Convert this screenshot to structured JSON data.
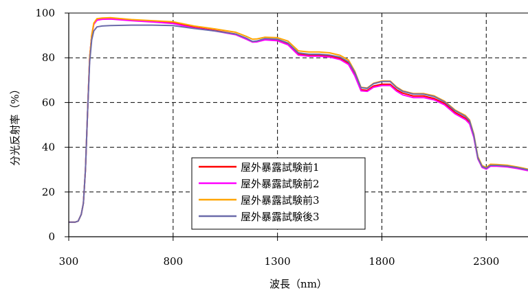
{
  "chart_data": {
    "type": "line",
    "xlabel": "波長（nm）",
    "ylabel": "分光反射率（%）",
    "xlim": [
      300,
      2500
    ],
    "ylim": [
      0,
      100
    ],
    "x_ticks": [
      300,
      800,
      1300,
      1800,
      2300
    ],
    "x_tick_labels": [
      "300",
      "800",
      "1300",
      "1800",
      "2300"
    ],
    "y_ticks": [
      0,
      20,
      40,
      60,
      80,
      100
    ],
    "y_tick_labels": [
      "0",
      "20",
      "40",
      "60",
      "80",
      "100"
    ],
    "grid": "dashed",
    "legend_position": "lower-left-center",
    "series": [
      {
        "name": "屋外暴露試験前1",
        "color": "#ff0000",
        "points": [
          [
            300,
            6.5
          ],
          [
            330,
            6.5
          ],
          [
            345,
            7
          ],
          [
            360,
            10
          ],
          [
            370,
            15
          ],
          [
            380,
            30
          ],
          [
            390,
            55
          ],
          [
            400,
            80
          ],
          [
            410,
            90
          ],
          [
            420,
            95
          ],
          [
            435,
            96.8
          ],
          [
            460,
            97.3
          ],
          [
            500,
            97.4
          ],
          [
            600,
            96.8
          ],
          [
            700,
            96.2
          ],
          [
            800,
            95.6
          ],
          [
            900,
            93.6
          ],
          [
            1000,
            92.2
          ],
          [
            1100,
            90.6
          ],
          [
            1150,
            88.6
          ],
          [
            1180,
            87.2
          ],
          [
            1200,
            87.3
          ],
          [
            1240,
            88.3
          ],
          [
            1300,
            87.9
          ],
          [
            1350,
            86.2
          ],
          [
            1400,
            81.6
          ],
          [
            1450,
            81.1
          ],
          [
            1500,
            81.1
          ],
          [
            1550,
            80.7
          ],
          [
            1600,
            79.7
          ],
          [
            1640,
            77.6
          ],
          [
            1670,
            72.5
          ],
          [
            1700,
            65.7
          ],
          [
            1730,
            65.4
          ],
          [
            1760,
            67.4
          ],
          [
            1800,
            68.2
          ],
          [
            1840,
            68.2
          ],
          [
            1870,
            65.7
          ],
          [
            1900,
            64.2
          ],
          [
            1950,
            62.9
          ],
          [
            2000,
            62.9
          ],
          [
            2050,
            61.8
          ],
          [
            2100,
            59.6
          ],
          [
            2150,
            55.6
          ],
          [
            2200,
            53
          ],
          [
            2220,
            51
          ],
          [
            2240,
            45
          ],
          [
            2260,
            35
          ],
          [
            2280,
            31.3
          ],
          [
            2300,
            30.5
          ],
          [
            2320,
            31.8
          ],
          [
            2350,
            31.8
          ],
          [
            2400,
            31.5
          ],
          [
            2450,
            30.8
          ],
          [
            2500,
            29.8
          ]
        ]
      },
      {
        "name": "屋外暴露試験前2",
        "color": "#ff00ff",
        "points": [
          [
            300,
            6.5
          ],
          [
            330,
            6.5
          ],
          [
            345,
            7
          ],
          [
            360,
            10
          ],
          [
            370,
            15
          ],
          [
            380,
            30
          ],
          [
            390,
            55
          ],
          [
            400,
            80
          ],
          [
            410,
            90
          ],
          [
            420,
            95
          ],
          [
            435,
            96.8
          ],
          [
            460,
            97.2
          ],
          [
            500,
            97.3
          ],
          [
            600,
            96.6
          ],
          [
            700,
            96
          ],
          [
            800,
            95.3
          ],
          [
            900,
            93.3
          ],
          [
            1000,
            92
          ],
          [
            1100,
            90.3
          ],
          [
            1150,
            88.3
          ],
          [
            1180,
            87
          ],
          [
            1200,
            87.1
          ],
          [
            1240,
            88
          ],
          [
            1300,
            87.6
          ],
          [
            1350,
            85.8
          ],
          [
            1400,
            81.2
          ],
          [
            1450,
            80.7
          ],
          [
            1500,
            80.7
          ],
          [
            1550,
            80.3
          ],
          [
            1600,
            79.2
          ],
          [
            1640,
            77
          ],
          [
            1670,
            72
          ],
          [
            1700,
            65.2
          ],
          [
            1730,
            65
          ],
          [
            1760,
            66.8
          ],
          [
            1800,
            67.6
          ],
          [
            1840,
            67.6
          ],
          [
            1870,
            65.1
          ],
          [
            1900,
            63.4
          ],
          [
            1950,
            62.2
          ],
          [
            2000,
            62.2
          ],
          [
            2050,
            61.2
          ],
          [
            2100,
            59
          ],
          [
            2150,
            55
          ],
          [
            2200,
            52.4
          ],
          [
            2220,
            50.5
          ],
          [
            2240,
            44.5
          ],
          [
            2260,
            34.8
          ],
          [
            2280,
            31
          ],
          [
            2300,
            30.2
          ],
          [
            2320,
            31.5
          ],
          [
            2350,
            31.5
          ],
          [
            2400,
            31.2
          ],
          [
            2450,
            30.5
          ],
          [
            2500,
            29.5
          ]
        ]
      },
      {
        "name": "屋外暴露試験前3",
        "color": "#ffa500",
        "points": [
          [
            300,
            6.5
          ],
          [
            330,
            6.5
          ],
          [
            345,
            7
          ],
          [
            360,
            10
          ],
          [
            370,
            15
          ],
          [
            380,
            30
          ],
          [
            390,
            55
          ],
          [
            400,
            80
          ],
          [
            410,
            90
          ],
          [
            420,
            95.5
          ],
          [
            435,
            97.5
          ],
          [
            460,
            97.8
          ],
          [
            500,
            97.9
          ],
          [
            600,
            97.1
          ],
          [
            700,
            96.6
          ],
          [
            800,
            96.1
          ],
          [
            900,
            94.2
          ],
          [
            1000,
            92.9
          ],
          [
            1100,
            91.4
          ],
          [
            1150,
            89.6
          ],
          [
            1180,
            88.3
          ],
          [
            1200,
            88.4
          ],
          [
            1240,
            89.2
          ],
          [
            1300,
            89
          ],
          [
            1350,
            87.5
          ],
          [
            1400,
            83.1
          ],
          [
            1450,
            82.6
          ],
          [
            1500,
            82.6
          ],
          [
            1550,
            82.2
          ],
          [
            1600,
            81.1
          ],
          [
            1640,
            79
          ],
          [
            1670,
            74
          ],
          [
            1700,
            66.8
          ],
          [
            1730,
            66.5
          ],
          [
            1760,
            68.6
          ],
          [
            1800,
            69.6
          ],
          [
            1840,
            69.6
          ],
          [
            1870,
            67
          ],
          [
            1900,
            65.2
          ],
          [
            1950,
            64
          ],
          [
            2000,
            64
          ],
          [
            2050,
            63
          ],
          [
            2100,
            60.6
          ],
          [
            2150,
            56.7
          ],
          [
            2200,
            54.2
          ],
          [
            2220,
            52.2
          ],
          [
            2240,
            46
          ],
          [
            2260,
            35.8
          ],
          [
            2280,
            31.8
          ],
          [
            2300,
            31
          ],
          [
            2320,
            32.4
          ],
          [
            2350,
            32.3
          ],
          [
            2400,
            32
          ],
          [
            2450,
            31.2
          ],
          [
            2500,
            30.2
          ]
        ]
      },
      {
        "name": "屋外暴露試験後3",
        "color": "#6a6aaa",
        "points": [
          [
            300,
            6.5
          ],
          [
            330,
            6.5
          ],
          [
            345,
            7
          ],
          [
            360,
            10
          ],
          [
            370,
            15
          ],
          [
            380,
            30
          ],
          [
            390,
            55
          ],
          [
            400,
            78
          ],
          [
            410,
            88
          ],
          [
            420,
            92
          ],
          [
            435,
            93.8
          ],
          [
            460,
            94.2
          ],
          [
            500,
            94.4
          ],
          [
            600,
            94.6
          ],
          [
            700,
            94.6
          ],
          [
            800,
            94.4
          ],
          [
            900,
            93.1
          ],
          [
            1000,
            92
          ],
          [
            1100,
            90.6
          ],
          [
            1150,
            88.8
          ],
          [
            1180,
            87.3
          ],
          [
            1200,
            87.5
          ],
          [
            1240,
            88.6
          ],
          [
            1300,
            88.3
          ],
          [
            1350,
            86.6
          ],
          [
            1400,
            82.2
          ],
          [
            1450,
            81.6
          ],
          [
            1500,
            81.6
          ],
          [
            1550,
            81.2
          ],
          [
            1600,
            80.3
          ],
          [
            1640,
            78.2
          ],
          [
            1670,
            73.5
          ],
          [
            1700,
            66.6
          ],
          [
            1730,
            66.3
          ],
          [
            1760,
            68.4
          ],
          [
            1800,
            69.4
          ],
          [
            1840,
            69.4
          ],
          [
            1870,
            66.7
          ],
          [
            1900,
            65
          ],
          [
            1950,
            63.8
          ],
          [
            2000,
            63.7
          ],
          [
            2050,
            62.7
          ],
          [
            2100,
            60.3
          ],
          [
            2150,
            56.4
          ],
          [
            2200,
            53.8
          ],
          [
            2220,
            51.8
          ],
          [
            2240,
            45.5
          ],
          [
            2260,
            35.3
          ],
          [
            2280,
            31.4
          ],
          [
            2300,
            30.6
          ],
          [
            2320,
            31.9
          ],
          [
            2350,
            31.9
          ],
          [
            2400,
            31.6
          ],
          [
            2450,
            30.9
          ],
          [
            2500,
            29.9
          ]
        ]
      }
    ]
  }
}
